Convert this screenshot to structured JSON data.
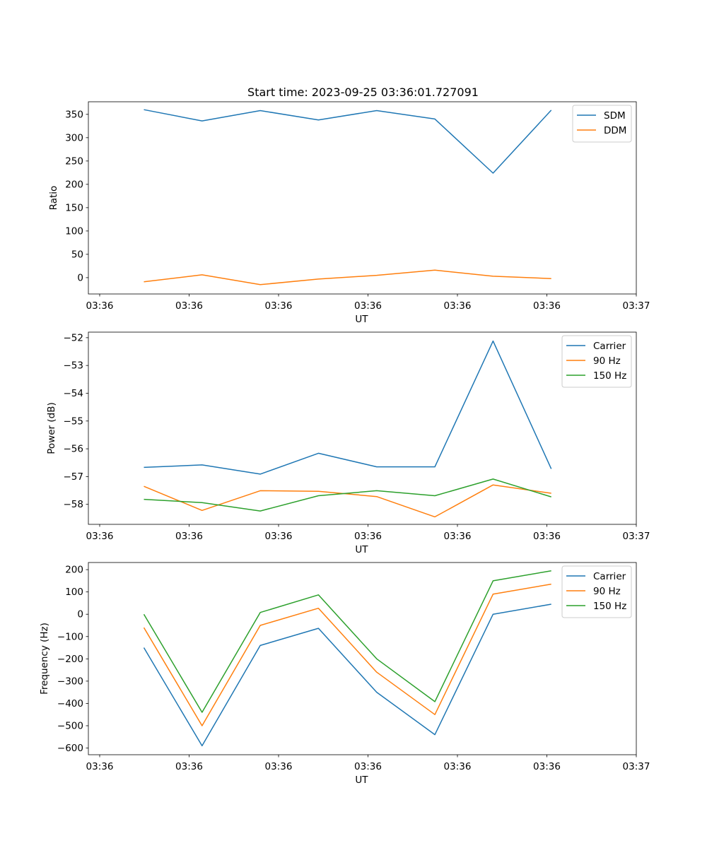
{
  "colors": {
    "c0": "#1f77b4",
    "c1": "#ff7f0e",
    "c2": "#2ca02c"
  },
  "chart_data": [
    {
      "type": "line",
      "title": "Start time: 2023-09-25 03:36:01.727091",
      "xlabel": "UT",
      "ylabel": "Ratio",
      "x_tick_labels": [
        "03:36",
        "03:36",
        "03:36",
        "03:36",
        "03:36",
        "03:36",
        "03:37"
      ],
      "x_point_fractions": [
        0.5,
        1.15,
        1.8,
        2.45,
        3.1,
        3.75,
        4.4,
        5.05
      ],
      "x_range": [
        -0.12,
        6.0
      ],
      "ylim": [
        -35,
        377
      ],
      "yticks": [
        0,
        50,
        100,
        150,
        200,
        250,
        300,
        350
      ],
      "legend_position": "top-right",
      "series": [
        {
          "name": "SDM",
          "color": "#1f77b4",
          "values": [
            360,
            336,
            358,
            338,
            358,
            340,
            224,
            359
          ]
        },
        {
          "name": "DDM",
          "color": "#ff7f0e",
          "values": [
            -9,
            6,
            -15,
            -3,
            5,
            16,
            3,
            -2
          ]
        }
      ]
    },
    {
      "type": "line",
      "title": "",
      "xlabel": "UT",
      "ylabel": "Power (dB)",
      "x_tick_labels": [
        "03:36",
        "03:36",
        "03:36",
        "03:36",
        "03:36",
        "03:36",
        "03:37"
      ],
      "x_point_fractions": [
        0.5,
        1.15,
        1.8,
        2.45,
        3.1,
        3.75,
        4.4,
        5.05
      ],
      "x_range": [
        -0.12,
        6.0
      ],
      "ylim": [
        -58.72,
        -51.8
      ],
      "yticks": [
        -58,
        -57,
        -56,
        -55,
        -54,
        -53,
        -52
      ],
      "legend_position": "top-right",
      "series": [
        {
          "name": "Carrier",
          "color": "#1f77b4",
          "values": [
            -56.67,
            -56.58,
            -56.91,
            -56.16,
            -56.65,
            -56.65,
            -52.12,
            -56.72
          ]
        },
        {
          "name": "90 Hz",
          "color": "#ff7f0e",
          "values": [
            -57.35,
            -58.22,
            -57.51,
            -57.53,
            -57.72,
            -58.45,
            -57.3,
            -57.6
          ]
        },
        {
          "name": "150 Hz",
          "color": "#2ca02c",
          "values": [
            -57.82,
            -57.94,
            -58.24,
            -57.69,
            -57.51,
            -57.69,
            -57.09,
            -57.73
          ]
        }
      ]
    },
    {
      "type": "line",
      "title": "",
      "xlabel": "UT",
      "ylabel": "Frequency (Hz)",
      "x_tick_labels": [
        "03:36",
        "03:36",
        "03:36",
        "03:36",
        "03:36",
        "03:36",
        "03:37"
      ],
      "x_point_fractions": [
        0.5,
        1.15,
        1.8,
        2.45,
        3.1,
        3.75,
        4.4,
        5.05
      ],
      "x_range": [
        -0.12,
        6.0
      ],
      "ylim": [
        -630,
        232
      ],
      "yticks": [
        -600,
        -500,
        -400,
        -300,
        -200,
        -100,
        0,
        100,
        200
      ],
      "legend_position": "top-right",
      "series": [
        {
          "name": "Carrier",
          "color": "#1f77b4",
          "values": [
            -150,
            -590,
            -140,
            -63,
            -350,
            -540,
            0,
            45
          ]
        },
        {
          "name": "90 Hz",
          "color": "#ff7f0e",
          "values": [
            -60,
            -500,
            -50,
            27,
            -260,
            -450,
            90,
            135
          ]
        },
        {
          "name": "150 Hz",
          "color": "#2ca02c",
          "values": [
            0,
            -440,
            8,
            87,
            -200,
            -392,
            150,
            195
          ]
        }
      ]
    }
  ]
}
